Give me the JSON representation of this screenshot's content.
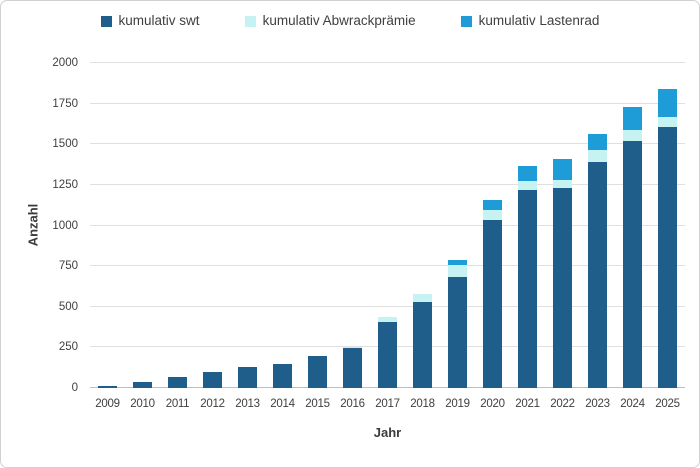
{
  "chart_data": {
    "type": "bar",
    "stacked": true,
    "title": "",
    "xlabel": "Jahr",
    "ylabel": "Anzahl",
    "ylim": [
      0,
      2000
    ],
    "ytick_step": 250,
    "yticks": [
      0,
      250,
      500,
      750,
      1000,
      1250,
      1500,
      1750,
      2000
    ],
    "grid": true,
    "legend_position": "top",
    "categories": [
      "2009",
      "2010",
      "2011",
      "2012",
      "2013",
      "2014",
      "2015",
      "2016",
      "2017",
      "2018",
      "2019",
      "2020",
      "2021",
      "2022",
      "2023",
      "2024",
      "2025"
    ],
    "series": [
      {
        "name": "kumulativ swt",
        "color": "#1f5e8a",
        "values": [
          12,
          35,
          65,
          100,
          130,
          150,
          200,
          245,
          405,
          530,
          685,
          1035,
          1220,
          1230,
          1390,
          1520,
          1605
        ]
      },
      {
        "name": "kumulativ Abwrackprämie",
        "color": "#c6f3f1",
        "values": [
          0,
          0,
          0,
          0,
          0,
          0,
          0,
          10,
          30,
          50,
          70,
          60,
          55,
          50,
          75,
          65,
          60
        ]
      },
      {
        "name": "kumulativ Lastenrad",
        "color": "#1e9cd8",
        "values": [
          0,
          0,
          0,
          0,
          0,
          0,
          0,
          0,
          0,
          0,
          30,
          65,
          90,
          130,
          100,
          145,
          175
        ]
      }
    ],
    "colors": {
      "gridline": "#e0e0e0",
      "baseline": "#bfbfbf",
      "text": "#404040",
      "frame_border": "#d2d0d0",
      "background": "#ffffff"
    }
  }
}
